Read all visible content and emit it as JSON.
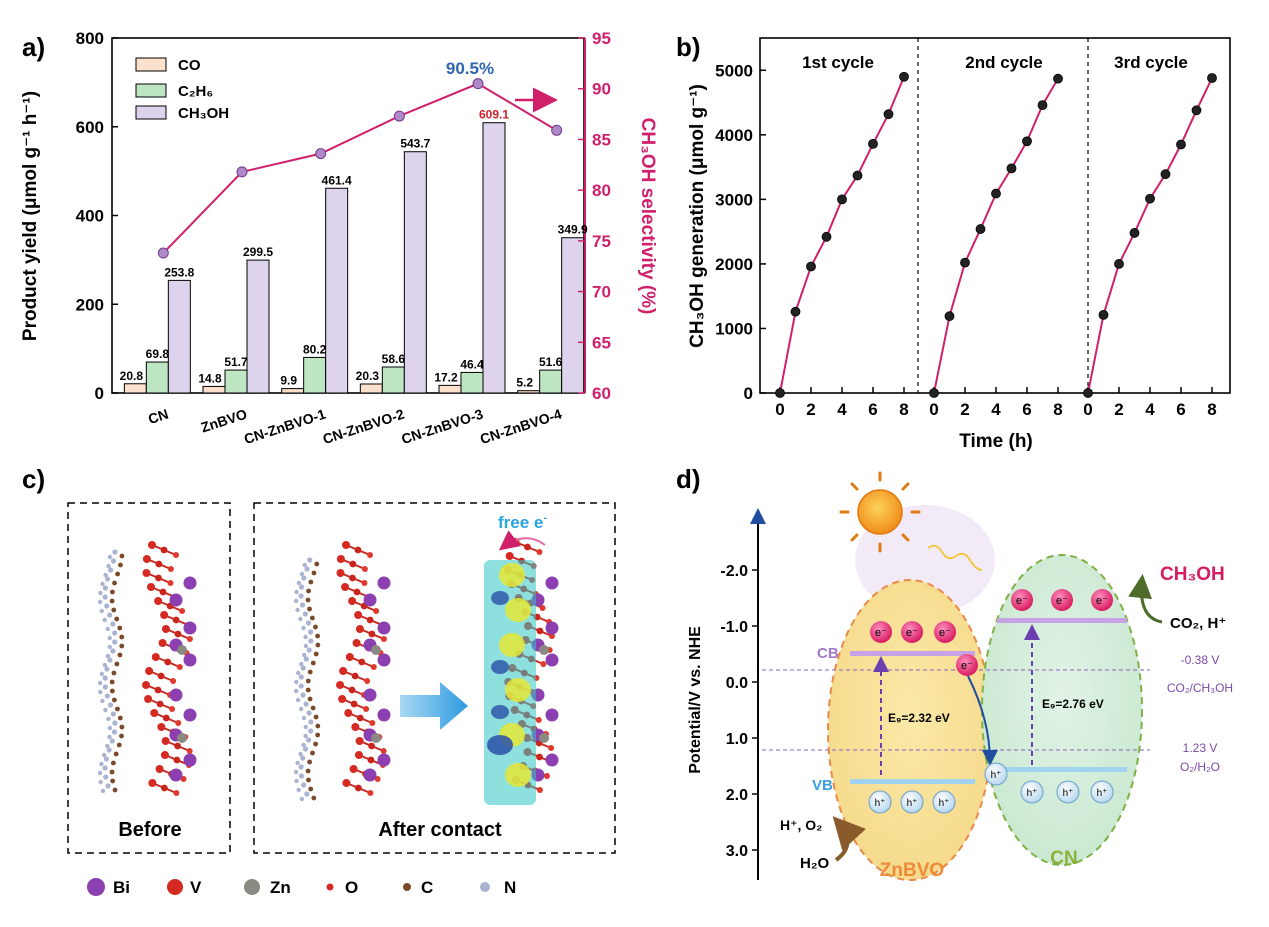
{
  "panels": {
    "a": "a)",
    "b": "b)",
    "c": "c)",
    "d": "d)"
  },
  "colors": {
    "co": "#fbe0cc",
    "c2h6": "#bfe6c2",
    "ch3oh": "#ddd3ec",
    "selectivity": "#d0206c",
    "highlight_blue": "#2e67b1",
    "highlight_red": "#d4202b"
  },
  "chart_data": [
    {
      "type": "bar",
      "id": "panel-a",
      "categories": [
        "CN",
        "ZnBVO",
        "CN-ZnBVO-1",
        "CN-ZnBVO-2",
        "CN-ZnBVO-3",
        "CN-ZnBVO-4"
      ],
      "series": [
        {
          "name": "CO",
          "values": [
            20.8,
            14.8,
            9.9,
            20.3,
            17.2,
            5.2
          ]
        },
        {
          "name": "C2H6",
          "values": [
            69.8,
            51.7,
            80.2,
            58.6,
            46.4,
            51.6
          ]
        },
        {
          "name": "CH3OH",
          "values": [
            253.8,
            299.5,
            461.4,
            543.7,
            609.1,
            349.9
          ]
        }
      ],
      "bar_labels": [
        [
          "20.8",
          "69.8",
          "253.8"
        ],
        [
          "14.8",
          "51.7",
          "299.5"
        ],
        [
          "9.9",
          "80.2",
          "461.4"
        ],
        [
          "20.3",
          "58.6",
          "543.7"
        ],
        [
          "17.2",
          "46.4",
          "609.1"
        ],
        [
          "5.2",
          "51.6",
          "349.9"
        ]
      ],
      "selectivity": {
        "name": "CH3OH selectivity",
        "values": [
          73.8,
          81.8,
          83.6,
          87.3,
          90.5,
          85.9
        ]
      },
      "annotation": "90.5%",
      "ylabel_left": "Product yield (μmol g⁻¹ h⁻¹)",
      "ylabel_right": "CH₃OH selectivity (%)",
      "ylim_left": [
        0,
        800
      ],
      "ylim_right": [
        60,
        95
      ],
      "left_ticks": [
        "0",
        "200",
        "400",
        "600",
        "800"
      ],
      "right_ticks": [
        "60",
        "65",
        "70",
        "75",
        "80",
        "85",
        "90",
        "95"
      ],
      "legend": [
        "CO",
        "C₂H₆",
        "CH₃OH"
      ]
    },
    {
      "type": "line",
      "id": "panel-b",
      "cycles": [
        {
          "label": "1st cycle",
          "x": [
            0,
            1,
            2,
            3,
            4,
            5,
            6,
            7,
            8
          ],
          "y": [
            0,
            1260,
            1960,
            2420,
            3000,
            3370,
            3860,
            4320,
            4900
          ]
        },
        {
          "label": "2nd cycle",
          "x": [
            0,
            1,
            2,
            3,
            4,
            5,
            6,
            7,
            8
          ],
          "y": [
            0,
            1190,
            2020,
            2540,
            3090,
            3480,
            3900,
            4460,
            4870
          ]
        },
        {
          "label": "3rd cycle",
          "x": [
            0,
            1,
            2,
            3,
            4,
            5,
            6,
            7,
            8
          ],
          "y": [
            0,
            1210,
            2000,
            2480,
            3010,
            3390,
            3850,
            4380,
            4880
          ]
        }
      ],
      "xlabel": "Time (h)",
      "ylabel": "CH₃OH generation (μmol g⁻¹)",
      "ylim": [
        0,
        5500
      ],
      "yticks": [
        "0",
        "1000",
        "2000",
        "3000",
        "4000",
        "5000"
      ],
      "xticks": [
        "0",
        "2",
        "4",
        "6",
        "8"
      ]
    }
  ],
  "panel_c": {
    "before": "Before",
    "after": "After contact",
    "free_e": "free e",
    "free_e_sup": "-",
    "legend": [
      "Bi",
      "V",
      "Zn",
      "O",
      "C",
      "N"
    ]
  },
  "panel_d": {
    "ylabel": "Potential/V vs. NHE",
    "yticks": [
      "-2.0",
      "-1.0",
      "0.0",
      "1.0",
      "2.0",
      "3.0"
    ],
    "cb": "CB",
    "vb": "VB",
    "eg_znbvo": "E₉=2.32 eV",
    "eg_cn": "E₉=2.76 eV",
    "line1_value": "-0.38 V",
    "line1_couple": "CO₂/CH₃OH",
    "line2_value": "1.23 V",
    "line2_couple": "O₂/H₂O",
    "ch3oh": "CH₃OH",
    "co2_h": "CO₂, H⁺",
    "h_o2": "H⁺, O₂",
    "h2o": "H₂O",
    "znbvo": "ZnBVO",
    "cn": "CN",
    "electron": "e⁻",
    "hole": "h⁺"
  }
}
